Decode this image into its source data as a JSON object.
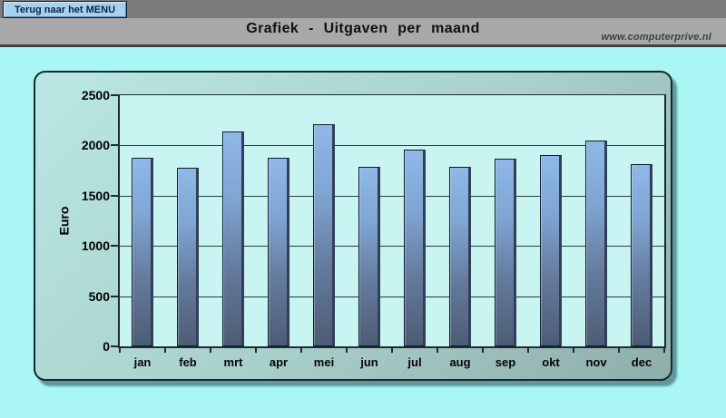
{
  "header": {
    "back_button": "Terug naar het MENU",
    "title": "Grafiek - Uitgaven per maand",
    "website": "www.computerprive.nl"
  },
  "colors": {
    "page_background": "#aaf6f5",
    "header_top_bar": "#7b7b7b",
    "header_title_bar": "#a9a9a9",
    "button_background": "#a4d2f0",
    "button_text": "#0e2048",
    "panel_gradient_start": "#b9e8e4",
    "panel_gradient_end": "#8eaeaa",
    "plot_background": "#c8f4f2",
    "bar_top": "#8fb8e8",
    "bar_bottom": "#4c5c74"
  },
  "chart_data": {
    "type": "bar",
    "categories": [
      "jan",
      "feb",
      "mrt",
      "apr",
      "mei",
      "jun",
      "jul",
      "aug",
      "sep",
      "okt",
      "nov",
      "dec"
    ],
    "values": [
      1880,
      1780,
      2140,
      1880,
      2210,
      1790,
      1960,
      1790,
      1870,
      1900,
      2050,
      1810
    ],
    "title": "Grafiek - Uitgaven per maand",
    "xlabel": "",
    "ylabel": "Euro",
    "ylim": [
      0,
      2500
    ],
    "yticks": [
      0,
      500,
      1000,
      1500,
      2000,
      2500
    ],
    "grid": true,
    "legend": false
  }
}
